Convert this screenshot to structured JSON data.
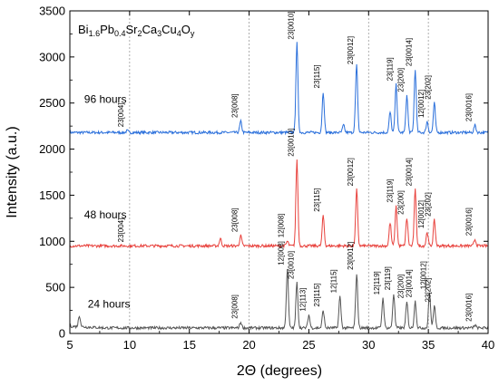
{
  "chart_data": {
    "type": "line",
    "formula": {
      "parts": [
        {
          "text": "Bi",
          "sub": false
        },
        {
          "text": "1.6",
          "sub": true
        },
        {
          "text": "Pb",
          "sub": false
        },
        {
          "text": "0.4",
          "sub": true
        },
        {
          "text": "Sr",
          "sub": false
        },
        {
          "text": "2",
          "sub": true
        },
        {
          "text": "Ca",
          "sub": false
        },
        {
          "text": "3",
          "sub": true
        },
        {
          "text": "Cu",
          "sub": false
        },
        {
          "text": "4",
          "sub": true
        },
        {
          "text": "O",
          "sub": false
        },
        {
          "text": "y",
          "sub": true
        }
      ]
    },
    "xlabel": "2Θ (degrees)",
    "ylabel": "Intensity (a.u.)",
    "xlim": [
      5,
      40
    ],
    "ylim": [
      0,
      3500
    ],
    "xticks": [
      5,
      10,
      15,
      20,
      25,
      30,
      35,
      40
    ],
    "yticks": [
      0,
      500,
      1000,
      1500,
      2000,
      2500,
      3000,
      3500
    ],
    "vertical_dashed_lines_at": [
      10,
      20,
      30,
      35
    ],
    "colors": {
      "series_96": "#2a6fdb",
      "series_48": "#e8413c",
      "series_24": "#555555"
    },
    "series": [
      {
        "name": "96 hours",
        "baseline": 2180,
        "peaks": [
          {
            "x": 9.8,
            "y": 2200,
            "label": "23[004]"
          },
          {
            "x": 19.3,
            "y": 2300,
            "label": "23[008]"
          },
          {
            "x": 24.0,
            "y": 3150,
            "label": "23[0010]"
          },
          {
            "x": 26.2,
            "y": 2620,
            "label": "23[115]"
          },
          {
            "x": 27.9,
            "y": 2260,
            "label": null
          },
          {
            "x": 28.9,
            "y": 2240,
            "label": null
          },
          {
            "x": 29.0,
            "y": 2880,
            "label": "23[0012]"
          },
          {
            "x": 31.8,
            "y": 2400,
            "label": null
          },
          {
            "x": 32.3,
            "y": 2700,
            "label": "23[119]"
          },
          {
            "x": 33.2,
            "y": 2580,
            "label": "23[200]"
          },
          {
            "x": 33.9,
            "y": 2860,
            "label": "23[0014]"
          },
          {
            "x": 34.9,
            "y": 2300,
            "label": "12[0012]"
          },
          {
            "x": 35.5,
            "y": 2500,
            "label": "23[202]"
          },
          {
            "x": 38.9,
            "y": 2260,
            "label": "23[0016]"
          }
        ]
      },
      {
        "name": "48 hours",
        "baseline": 950,
        "peaks": [
          {
            "x": 9.8,
            "y": 950,
            "label": "23[004]"
          },
          {
            "x": 17.6,
            "y": 1030,
            "label": null
          },
          {
            "x": 19.3,
            "y": 1060,
            "label": "23[008]"
          },
          {
            "x": 23.2,
            "y": 1000,
            "label": "12[008]"
          },
          {
            "x": 24.0,
            "y": 1880,
            "label": "23[0010]"
          },
          {
            "x": 26.2,
            "y": 1280,
            "label": "23[115]"
          },
          {
            "x": 29.0,
            "y": 1560,
            "label": "23[0012]"
          },
          {
            "x": 31.8,
            "y": 1200,
            "label": null
          },
          {
            "x": 32.3,
            "y": 1380,
            "label": "23[119]"
          },
          {
            "x": 33.2,
            "y": 1250,
            "label": "23[200]"
          },
          {
            "x": 33.9,
            "y": 1560,
            "label": "23[0014]"
          },
          {
            "x": 34.9,
            "y": 1100,
            "label": "12[0012]"
          },
          {
            "x": 35.5,
            "y": 1230,
            "label": "23[202]"
          },
          {
            "x": 38.9,
            "y": 1020,
            "label": "23[0016]"
          }
        ]
      },
      {
        "name": "24 hours",
        "baseline": 60,
        "peaks": [
          {
            "x": 5.8,
            "y": 180,
            "label": null
          },
          {
            "x": 19.3,
            "y": 120,
            "label": "23[008]"
          },
          {
            "x": 23.2,
            "y": 700,
            "label": "12[008]"
          },
          {
            "x": 24.0,
            "y": 550,
            "label": "23[0010]"
          },
          {
            "x": 25.0,
            "y": 200,
            "label": "12[113]"
          },
          {
            "x": 26.2,
            "y": 250,
            "label": "23[115]"
          },
          {
            "x": 27.6,
            "y": 400,
            "label": "12[115]"
          },
          {
            "x": 29.0,
            "y": 650,
            "label": "23[0012]"
          },
          {
            "x": 31.2,
            "y": 380,
            "label": "12[119]"
          },
          {
            "x": 32.1,
            "y": 430,
            "label": "23[119]"
          },
          {
            "x": 33.2,
            "y": 340,
            "label": "23[200]"
          },
          {
            "x": 33.9,
            "y": 350,
            "label": "23[0014]"
          },
          {
            "x": 35.1,
            "y": 440,
            "label": "12[0012]"
          },
          {
            "x": 35.5,
            "y": 300,
            "label": "23[202]"
          },
          {
            "x": 38.9,
            "y": 90,
            "label": "23[0016]"
          }
        ]
      }
    ]
  }
}
